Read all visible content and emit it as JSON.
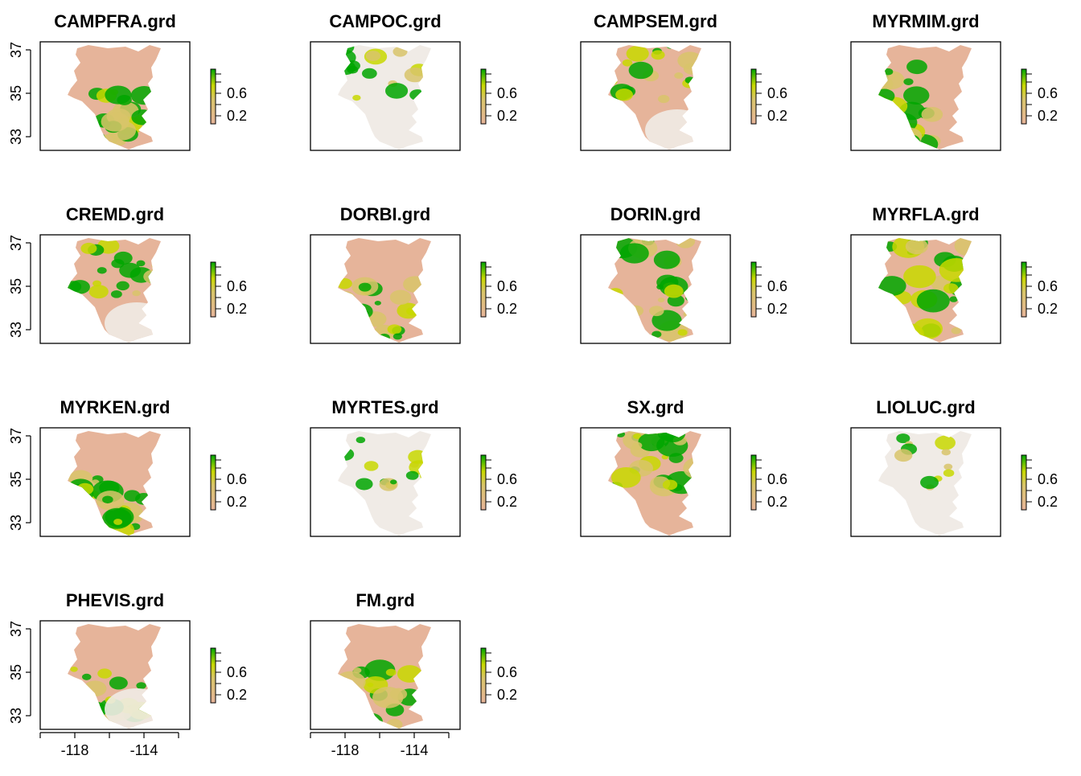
{
  "figure": {
    "panels": [
      {
        "title": "CAMPFRA.grd",
        "intensity": 0.55,
        "pattern": "south"
      },
      {
        "title": "CAMPOC.grd",
        "intensity": 0.25,
        "pattern": "north"
      },
      {
        "title": "CAMPSEM.grd",
        "intensity": 0.35,
        "pattern": "north"
      },
      {
        "title": "MYRMIM.grd",
        "intensity": 0.55,
        "pattern": "west"
      },
      {
        "title": "CREMD.grd",
        "intensity": 0.35,
        "pattern": "north"
      },
      {
        "title": "DORBI.grd",
        "intensity": 0.55,
        "pattern": "south"
      },
      {
        "title": "DORIN.grd",
        "intensity": 0.7,
        "pattern": "all"
      },
      {
        "title": "MYRFLA.grd",
        "intensity": 0.75,
        "pattern": "all"
      },
      {
        "title": "MYRKEN.grd",
        "intensity": 0.7,
        "pattern": "south"
      },
      {
        "title": "MYRTES.grd",
        "intensity": 0.15,
        "pattern": "north"
      },
      {
        "title": "SX.grd",
        "intensity": 0.7,
        "pattern": "north"
      },
      {
        "title": "LIOLUC.grd",
        "intensity": 0.15,
        "pattern": "north"
      },
      {
        "title": "PHEVIS.grd",
        "intensity": 0.35,
        "pattern": "south"
      },
      {
        "title": "FM.grd",
        "intensity": 0.6,
        "pattern": "south"
      }
    ],
    "y_ticks": [
      "33",
      "35",
      "37"
    ],
    "x_ticks": [
      "-118",
      "-114"
    ],
    "legend_ticks": [
      "0.2",
      "0.6"
    ],
    "colors": {
      "low": "#f0ebe6",
      "mid_low": "#e6b49a",
      "mid": "#d8c46a",
      "mid_high": "#c8d800",
      "high": "#00a600",
      "frame": "#000000"
    }
  }
}
